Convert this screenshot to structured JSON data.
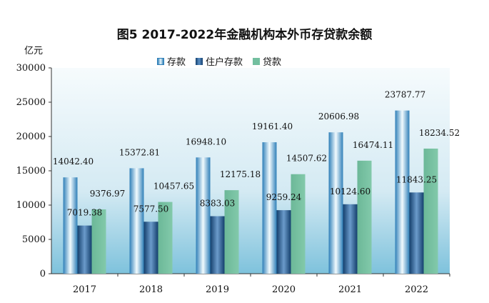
{
  "chart_data": {
    "type": "bar",
    "title": "图5    2017-2022年金融机构本外币存贷款余额",
    "ylabel": "亿元",
    "xlabel": "",
    "ylim": [
      0,
      30000
    ],
    "yticks": [
      0,
      5000,
      10000,
      15000,
      20000,
      25000,
      30000
    ],
    "categories": [
      "2017",
      "2018",
      "2019",
      "2020",
      "2021",
      "2022"
    ],
    "series": [
      {
        "name": "存款",
        "color": "#2f7fb8",
        "values": [
          14042.4,
          15372.81,
          16948.1,
          19161.4,
          20606.98,
          23787.77
        ],
        "labels": [
          "14042.40",
          "15372.81",
          "16948.10",
          "19161.40",
          "20606.98",
          "23787.77"
        ]
      },
      {
        "name": "住户存款",
        "color": "#1f5a94",
        "values": [
          7019.38,
          7577.5,
          8383.03,
          9259.24,
          10124.6,
          11843.25
        ],
        "labels": [
          "7019.38",
          "7577.50",
          "8383.03",
          "9259.24",
          "10124.60",
          "11843.25"
        ]
      },
      {
        "name": "贷款",
        "color": "#73bf9f",
        "values": [
          9376.97,
          10457.65,
          12175.18,
          14507.62,
          16474.11,
          18234.52
        ],
        "labels": [
          "9376.97",
          "10457.65",
          "12175.18",
          "14507.62",
          "16474.11",
          "18234.52"
        ]
      }
    ],
    "legend": "top-center",
    "grid": false
  }
}
